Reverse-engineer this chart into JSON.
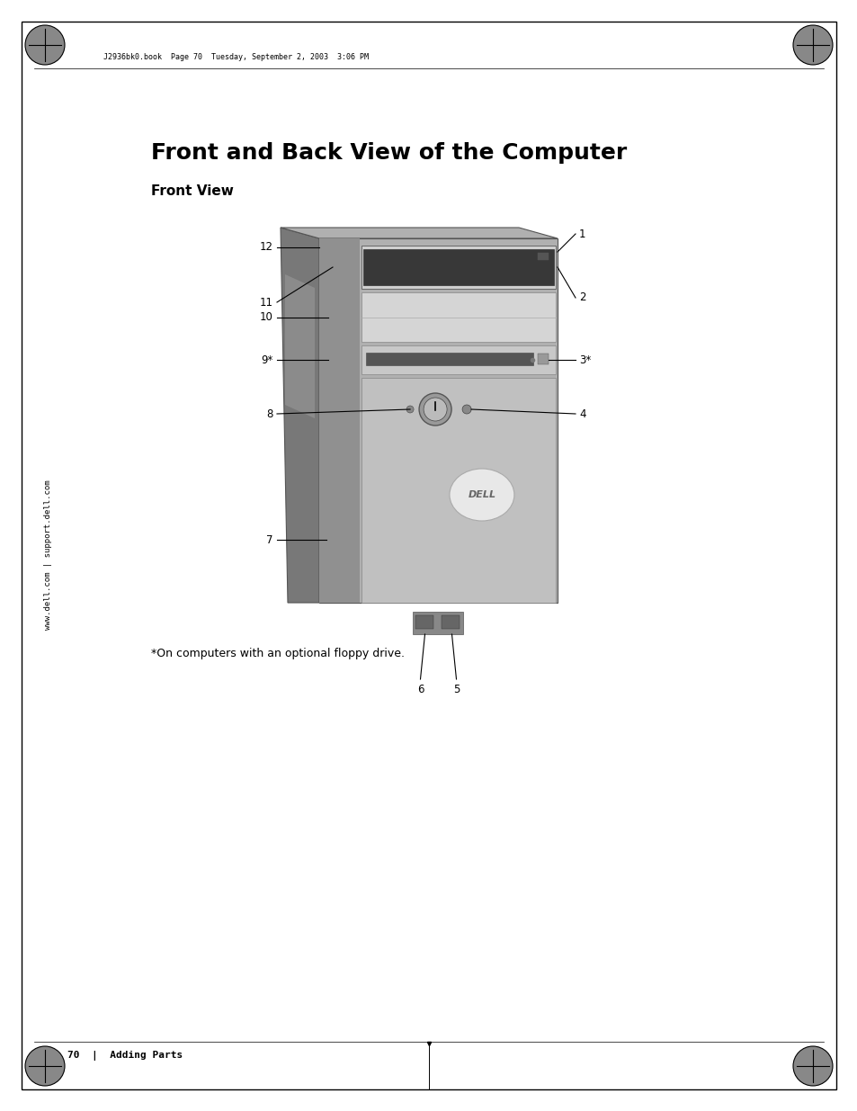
{
  "page_title": "Front and Back View of the Computer",
  "section_title": "Front View",
  "footnote": "*On computers with an optional floppy drive.",
  "footer_text": "70  |  Adding Parts",
  "header_text": "J2936bk0.book  Page 70  Tuesday, September 2, 2003  3:06 PM",
  "sidebar_text": "www.dell.com | support.dell.com",
  "bg_color": "#ffffff",
  "title_fontsize": 18,
  "section_fontsize": 11,
  "body_fontsize": 9
}
